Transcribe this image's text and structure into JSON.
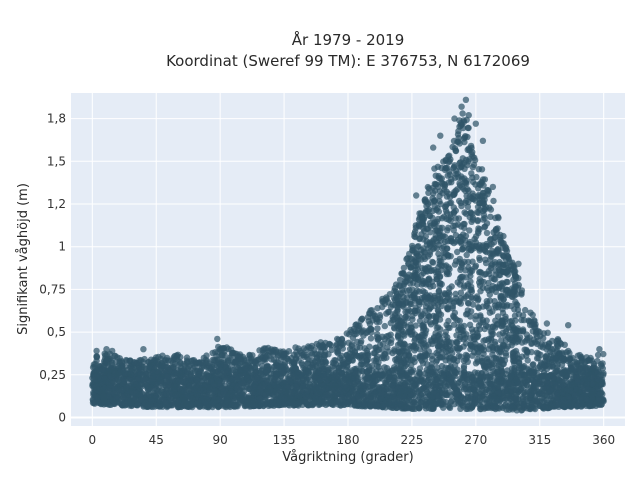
{
  "chart_data": {
    "type": "scatter",
    "title_line1": "År 1979 - 2019",
    "title_line2": "Koordinat (Sweref 99 TM): E 376753, N 6172069",
    "xlabel": "Vågriktning (grader)",
    "ylabel": "Signifikant våghöjd (m)",
    "xlim": [
      -15,
      375
    ],
    "ylim": [
      -0.05,
      1.9
    ],
    "x_ticks": [
      0,
      45,
      90,
      135,
      180,
      225,
      270,
      315,
      360
    ],
    "x_tick_labels": [
      "0",
      "45",
      "90",
      "135",
      "180",
      "225",
      "270",
      "315",
      "360"
    ],
    "y_ticks": [
      0,
      0.25,
      0.5,
      0.75,
      1,
      1.25,
      1.5,
      1.75
    ],
    "y_tick_labels": [
      "0",
      "0,25",
      "0,5",
      "0,75",
      "1",
      "1,2",
      "1,5",
      "1,8"
    ],
    "grid": true,
    "legend": "none",
    "marker_color": "#2f5468",
    "plot_background": "#e5ecf6",
    "upper_envelope": {
      "x": [
        0,
        10,
        20,
        30,
        45,
        60,
        75,
        90,
        105,
        120,
        135,
        150,
        165,
        180,
        195,
        210,
        220,
        230,
        240,
        250,
        255,
        260,
        265,
        270,
        280,
        290,
        300,
        310,
        320,
        330,
        340,
        350,
        360
      ],
      "y": [
        0.38,
        0.38,
        0.35,
        0.34,
        0.36,
        0.37,
        0.33,
        0.43,
        0.37,
        0.41,
        0.4,
        0.42,
        0.45,
        0.5,
        0.62,
        0.75,
        0.9,
        1.2,
        1.45,
        1.55,
        1.68,
        1.8,
        1.72,
        1.55,
        1.35,
        1.05,
        0.82,
        0.58,
        0.5,
        0.45,
        0.38,
        0.35,
        0.4
      ]
    },
    "lower_envelope": {
      "x": [
        0,
        45,
        90,
        135,
        180,
        225,
        270,
        300,
        330,
        360
      ],
      "y": [
        0.08,
        0.06,
        0.06,
        0.07,
        0.07,
        0.05,
        0.05,
        0.04,
        0.06,
        0.07
      ]
    },
    "outliers": [
      {
        "x": 3,
        "y": 0.39
      },
      {
        "x": 10,
        "y": 0.4
      },
      {
        "x": 14,
        "y": 0.39
      },
      {
        "x": 36,
        "y": 0.4
      },
      {
        "x": 88,
        "y": 0.46
      },
      {
        "x": 158,
        "y": 0.43
      },
      {
        "x": 202,
        "y": 0.56
      },
      {
        "x": 228,
        "y": 1.3
      },
      {
        "x": 240,
        "y": 1.58
      },
      {
        "x": 245,
        "y": 1.65
      },
      {
        "x": 255,
        "y": 1.75
      },
      {
        "x": 260,
        "y": 1.82
      },
      {
        "x": 263,
        "y": 1.86
      },
      {
        "x": 265,
        "y": 1.77
      },
      {
        "x": 270,
        "y": 1.72
      },
      {
        "x": 275,
        "y": 1.62
      },
      {
        "x": 282,
        "y": 1.35
      },
      {
        "x": 300,
        "y": 0.9
      },
      {
        "x": 310,
        "y": 0.6
      },
      {
        "x": 320,
        "y": 0.55
      },
      {
        "x": 335,
        "y": 0.54
      },
      {
        "x": 357,
        "y": 0.4
      }
    ]
  }
}
